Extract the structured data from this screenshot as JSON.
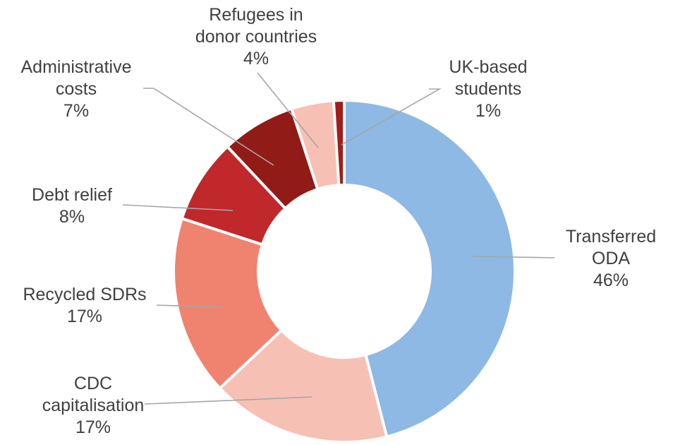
{
  "chart_data": {
    "type": "pie",
    "variant": "donut",
    "title": "",
    "legend": "none",
    "slices": [
      {
        "label_lines": [
          "Transferred",
          "ODA"
        ],
        "value": 46,
        "value_label": "46%",
        "color": "#8db9e4"
      },
      {
        "label_lines": [
          "CDC",
          "capitalisation"
        ],
        "value": 17,
        "value_label": "17%",
        "color": "#f7c0b4"
      },
      {
        "label_lines": [
          "Recycled SDRs"
        ],
        "value": 17,
        "value_label": "17%",
        "color": "#ef836f"
      },
      {
        "label_lines": [
          "Debt relief"
        ],
        "value": 8,
        "value_label": "8%",
        "color": "#c0282b"
      },
      {
        "label_lines": [
          "Administrative",
          "costs"
        ],
        "value": 7,
        "value_label": "7%",
        "color": "#911b16"
      },
      {
        "label_lines": [
          "Refugees in",
          "donor countries"
        ],
        "value": 4,
        "value_label": "4%",
        "color": "#f7c0b4"
      },
      {
        "label_lines": [
          "UK-based",
          "students"
        ],
        "value": 1,
        "value_label": "1%",
        "color": "#a11d1a"
      }
    ]
  }
}
